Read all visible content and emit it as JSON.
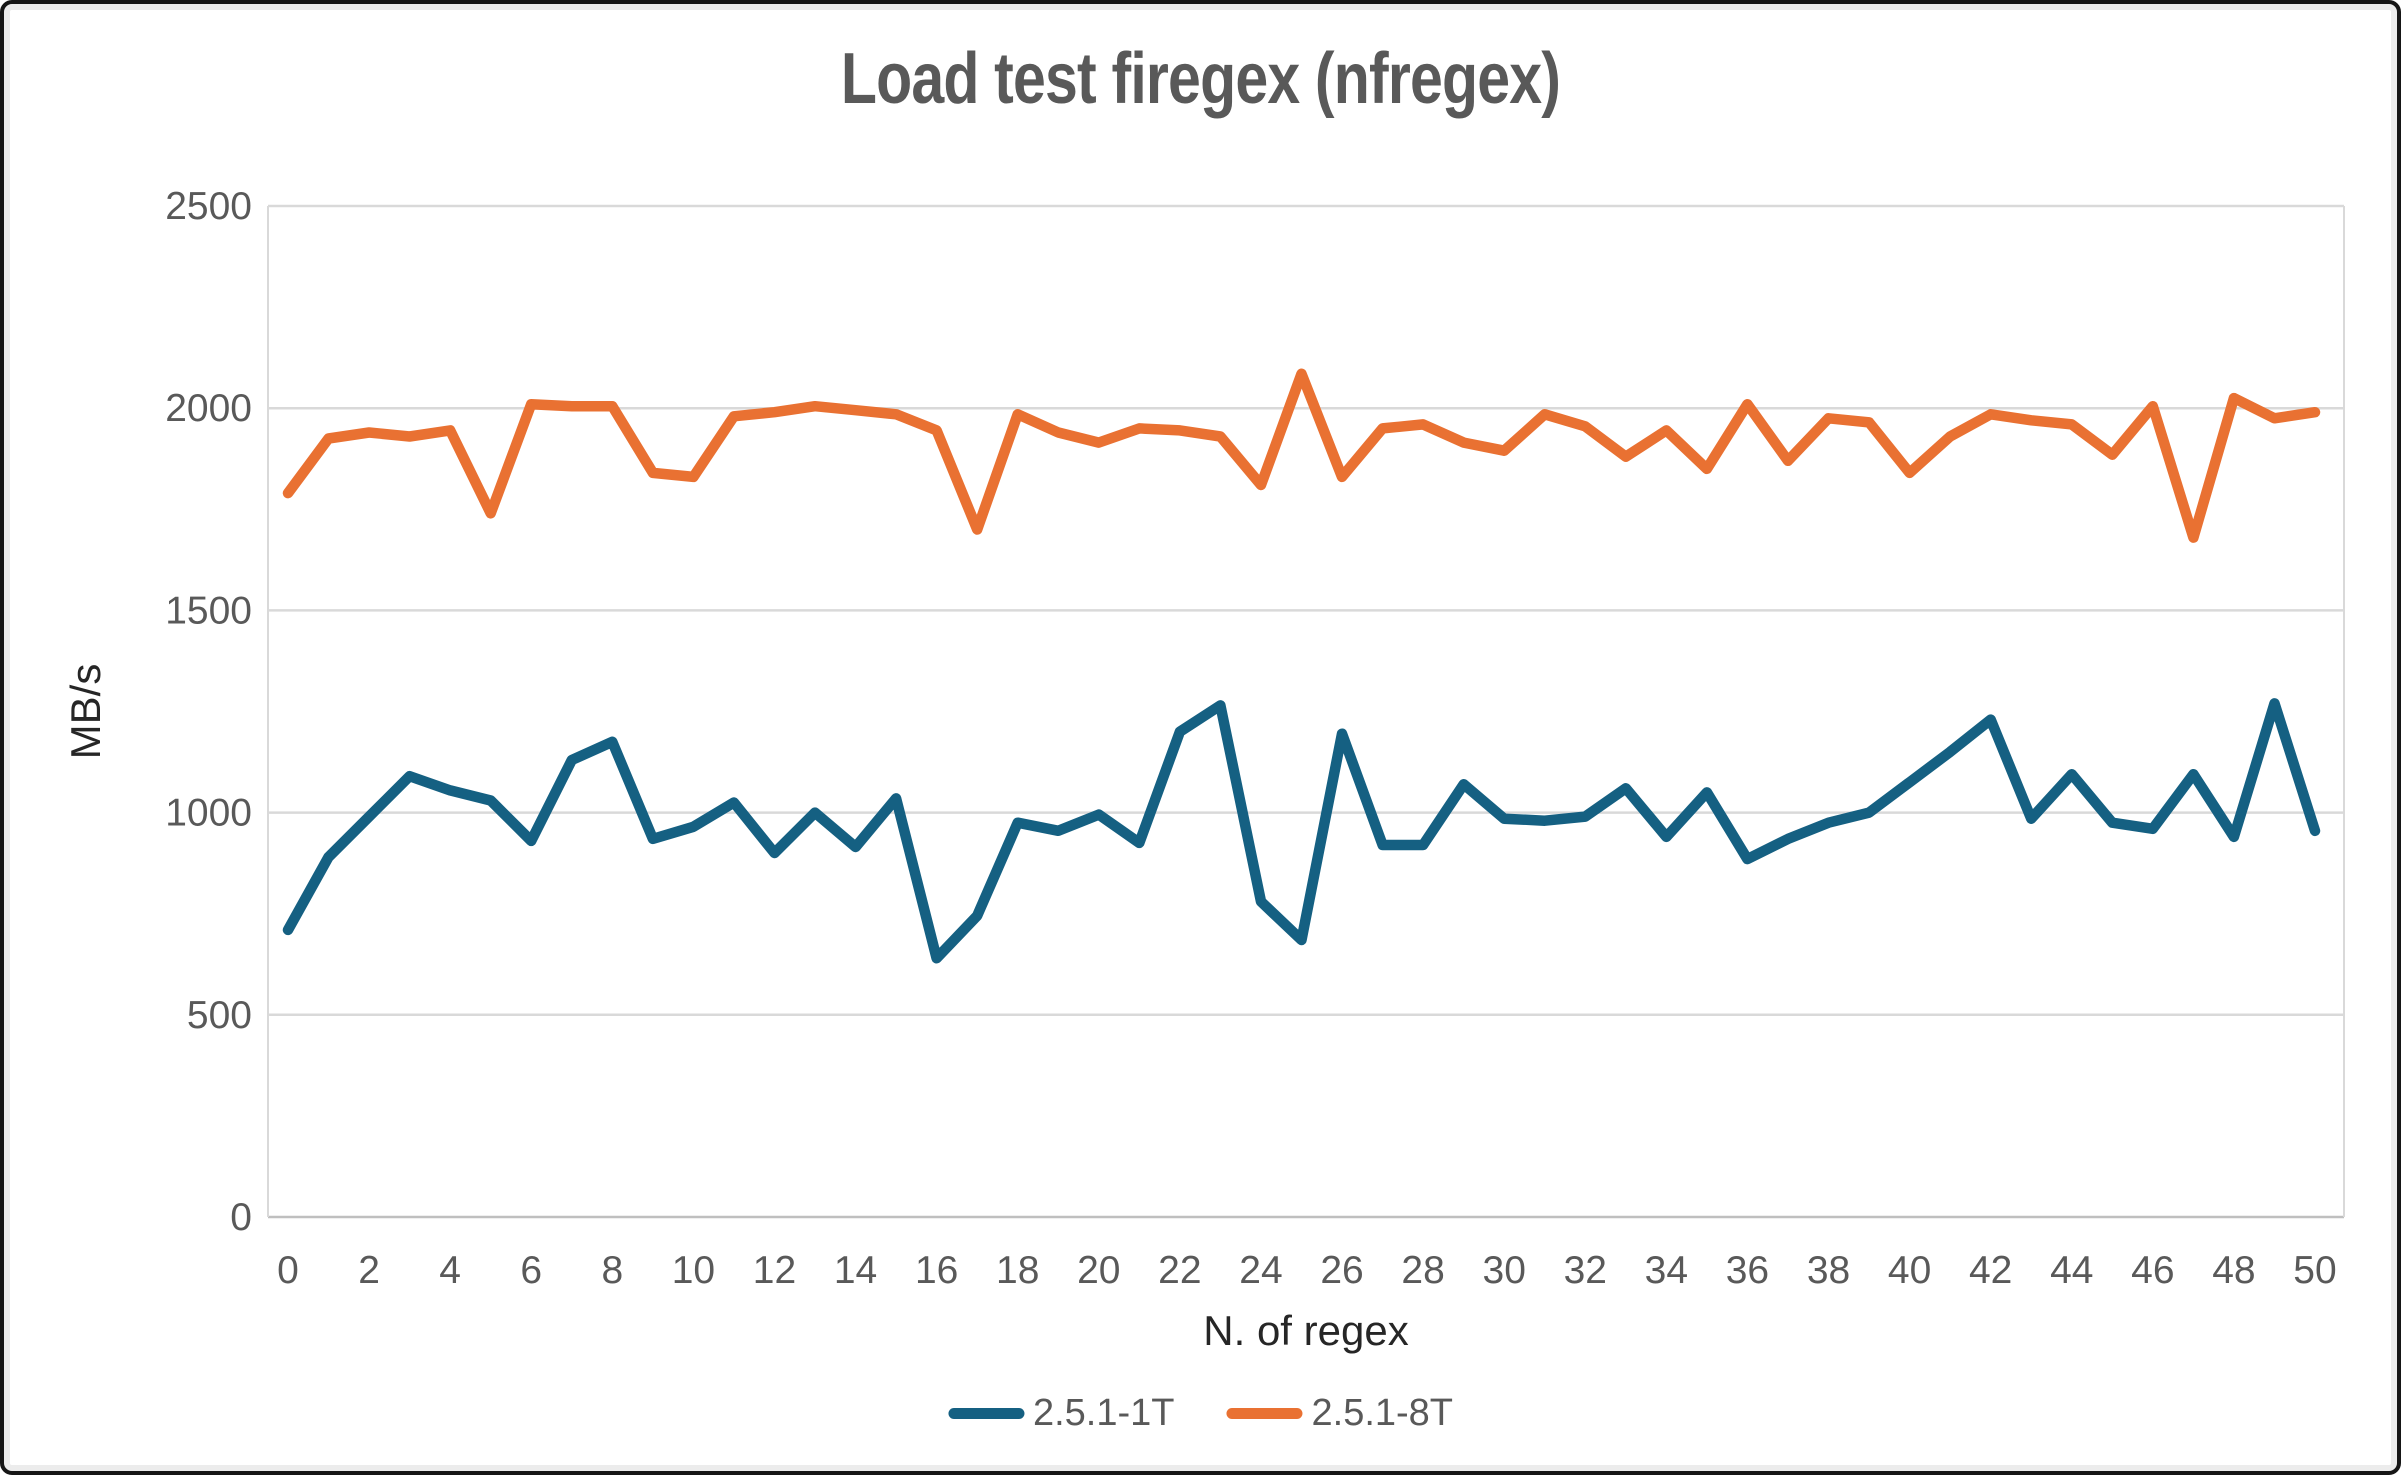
{
  "chart_data": {
    "type": "line",
    "title": "Load test firegex (nfregex)",
    "xlabel": "N. of regex",
    "ylabel": "MB/s",
    "x": [
      0,
      1,
      2,
      3,
      4,
      5,
      6,
      7,
      8,
      9,
      10,
      11,
      12,
      13,
      14,
      15,
      16,
      17,
      18,
      19,
      20,
      21,
      22,
      23,
      24,
      25,
      26,
      27,
      28,
      29,
      30,
      31,
      32,
      33,
      34,
      35,
      36,
      37,
      38,
      39,
      40,
      41,
      42,
      43,
      44,
      45,
      46,
      47,
      48,
      49,
      50
    ],
    "x_ticks": [
      0,
      2,
      4,
      6,
      8,
      10,
      12,
      14,
      16,
      18,
      20,
      22,
      24,
      26,
      28,
      30,
      32,
      34,
      36,
      38,
      40,
      42,
      44,
      46,
      48,
      50
    ],
    "y_ticks": [
      0,
      500,
      1000,
      1500,
      2000,
      2500
    ],
    "ylim": [
      0,
      2500
    ],
    "xlim": [
      0,
      50
    ],
    "grid": true,
    "legend_position": "bottom",
    "colors": {
      "gridline": "#D9D9D9",
      "axis_line": "#BFBFBF",
      "tick_label": "#595959",
      "axis_title": "#262626",
      "title": "#595959"
    },
    "series": [
      {
        "name": "2.5.1-1T",
        "color": "#156082",
        "values": [
          710,
          890,
          990,
          1090,
          1055,
          1030,
          930,
          1130,
          1175,
          935,
          965,
          1025,
          900,
          1000,
          915,
          1035,
          640,
          745,
          975,
          955,
          995,
          925,
          1200,
          1265,
          780,
          685,
          1195,
          920,
          920,
          1070,
          985,
          980,
          990,
          1060,
          940,
          1050,
          885,
          935,
          975,
          1000,
          1075,
          1150,
          1230,
          985,
          1095,
          975,
          960,
          1095,
          940,
          1270,
          955
        ]
      },
      {
        "name": "2.5.1-8T",
        "color": "#E97132",
        "values": [
          1790,
          1925,
          1940,
          1930,
          1945,
          1740,
          2010,
          2005,
          2005,
          1840,
          1830,
          1980,
          1990,
          2005,
          1995,
          1985,
          1945,
          1700,
          1985,
          1940,
          1915,
          1950,
          1945,
          1930,
          1810,
          2085,
          1830,
          1950,
          1960,
          1915,
          1895,
          1985,
          1955,
          1880,
          1945,
          1850,
          2010,
          1870,
          1975,
          1965,
          1840,
          1930,
          1985,
          1970,
          1960,
          1885,
          2005,
          1680,
          2025,
          1975,
          1990
        ]
      }
    ]
  }
}
